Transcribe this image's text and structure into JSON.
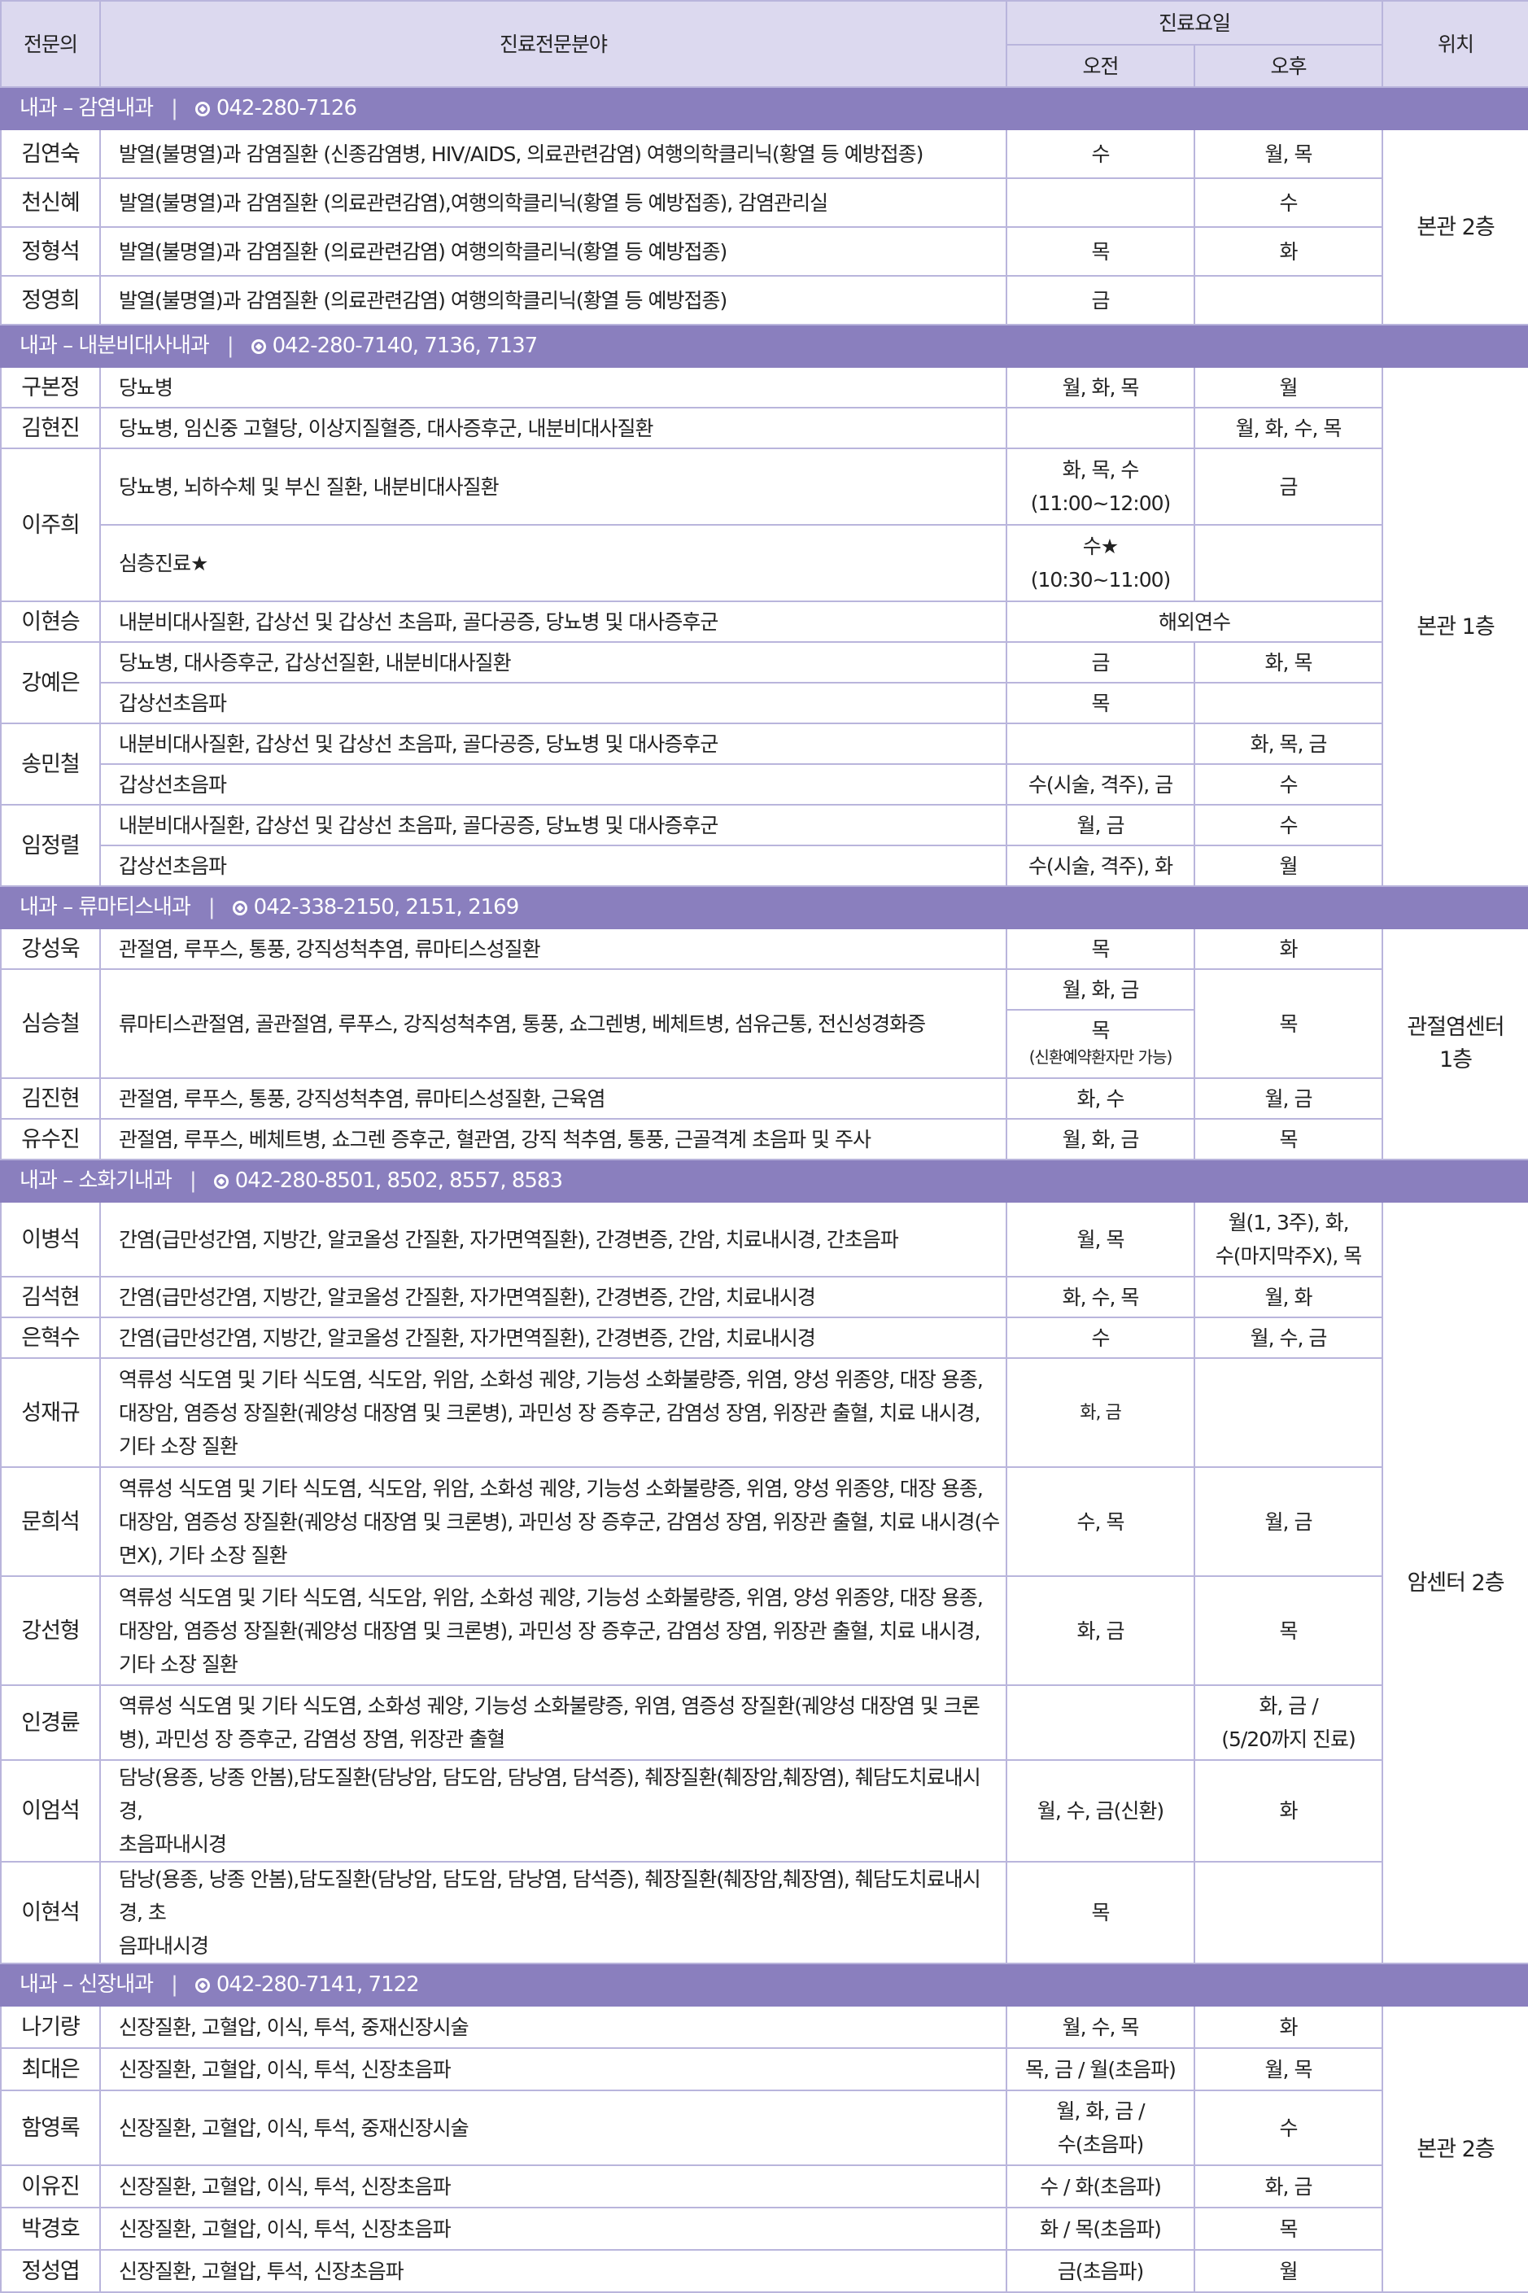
{
  "header": {
    "doctor": "전문의",
    "specialty": "진료전문분야",
    "days": "진료요일",
    "am": "오전",
    "pm": "오후",
    "location": "위치"
  },
  "sections": [
    {
      "name": "내과 – 감염내과",
      "phone": "042-280-7126",
      "location": "본관 2층"
    },
    {
      "name": "내과 – 내분비대사내과",
      "phone": "042-280-7140, 7136, 7137",
      "location": "본관 1층"
    },
    {
      "name": "내과 – 류마티스내과",
      "phone": "042-338-2150, 2151, 2169",
      "location": "관절염센터 1층"
    },
    {
      "name": "내과 – 소화기내과",
      "phone": "042-280-8501, 8502, 8557, 8583",
      "location": "암센터 2층"
    },
    {
      "name": "내과 – 신장내과",
      "phone": "042-280-7141, 7122",
      "location": "본관 2층"
    }
  ],
  "rows": [
    {
      "doctor": "김연숙",
      "specialty": "발열(불명열)과 감염질환 (신종감염병, HIV/AIDS, 의료관련감염) 여행의학클리닉(황열 등 예방접종)",
      "am": "수",
      "pm": "월, 목"
    },
    {
      "doctor": "천신혜",
      "specialty": "발열(불명열)과 감염질환 (의료관련감염),여행의학클리닉(황열 등 예방접종), 감염관리실",
      "am": "",
      "pm": "수"
    },
    {
      "doctor": "정형석",
      "specialty": "발열(불명열)과 감염질환 (의료관련감염) 여행의학클리닉(황열 등 예방접종)",
      "am": "목",
      "pm": "화"
    },
    {
      "doctor": "정영희",
      "specialty": "발열(불명열)과 감염질환 (의료관련감염) 여행의학클리닉(황열 등 예방접종)",
      "am": "금",
      "pm": ""
    },
    {
      "doctor": "구본정",
      "specialty": "당뇨병",
      "am": "월, 화, 목",
      "pm": "월"
    },
    {
      "doctor": "김현진",
      "specialty": "당뇨병, 임신중 고혈당, 이상지질혈증, 대사증후군, 내분비대사질환",
      "am": "",
      "pm": "월, 화, 수, 목"
    },
    {
      "doctor": "이주희",
      "specialty": "당뇨병, 뇌하수체 및 부신 질환, 내분비대사질환",
      "am": "화, 목, 수",
      "am2": "(11:00~12:00)",
      "pm": "금"
    },
    {
      "specialty": "심층진료★",
      "am": "수★",
      "am2": "(10:30~11:00)",
      "pm": ""
    },
    {
      "doctor": "이현승",
      "specialty": "내분비대사질환, 갑상선 및 갑상선 초음파, 골다공증, 당뇨병 및 대사증후군",
      "merged": "해외연수"
    },
    {
      "doctor": "강예은",
      "specialty": "당뇨병, 대사증후군, 갑상선질환, 내분비대사질환",
      "am": "금",
      "pm": "화, 목"
    },
    {
      "specialty": "갑상선초음파",
      "am": "목",
      "pm": ""
    },
    {
      "doctor": "송민철",
      "specialty": "내분비대사질환, 갑상선 및 갑상선 초음파, 골다공증, 당뇨병 및 대사증후군",
      "am": "",
      "pm": "화, 목, 금"
    },
    {
      "specialty": "갑상선초음파",
      "am": "수(시술, 격주), 금",
      "pm": "수"
    },
    {
      "doctor": "임정렬",
      "specialty": "내분비대사질환, 갑상선 및 갑상선 초음파, 골다공증, 당뇨병 및 대사증후군",
      "am": "월, 금",
      "pm": "수"
    },
    {
      "specialty": "갑상선초음파",
      "am": "수(시술, 격주), 화",
      "pm": "월"
    },
    {
      "doctor": "강성욱",
      "specialty": "관절염, 루푸스, 통풍, 강직성척추염, 류마티스성질환",
      "am": "목",
      "pm": "화"
    },
    {
      "doctor": "심승철",
      "specialty": "류마티스관절염, 골관절염, 루푸스, 강직성척추염, 통풍, 쇼그렌병, 베체트병, 섬유근통, 전신성경화증",
      "am": "월, 화, 금",
      "pm": "목"
    },
    {
      "am": "목",
      "am_note": "(신환예약환자만 가능)"
    },
    {
      "doctor": "김진현",
      "specialty": "관절염, 루푸스, 통풍, 강직성척추염, 류마티스성질환, 근육염",
      "am": "화, 수",
      "pm": "월, 금"
    },
    {
      "doctor": "유수진",
      "specialty": "관절염, 루푸스, 베체트병, 쇼그렌 증후군, 혈관염, 강직 척추염, 통풍, 근골격계 초음파 및 주사",
      "am": "월, 화, 금",
      "pm": "목"
    },
    {
      "doctor": "이병석",
      "specialty": "간염(급만성간염, 지방간, 알코올성 간질환, 자가면역질환), 간경변증, 간암, 치료내시경, 간초음파",
      "am": "월, 목",
      "pm": "월(1, 3주), 화,",
      "pm2": "수(마지막주X), 목"
    },
    {
      "doctor": "김석현",
      "specialty": "간염(급만성간염, 지방간, 알코올성 간질환, 자가면역질환), 간경변증, 간암, 치료내시경",
      "am": "화, 수, 목",
      "pm": "월, 화"
    },
    {
      "doctor": "은혁수",
      "specialty": "간염(급만성간염, 지방간, 알코올성 간질환, 자가면역질환), 간경변증, 간암, 치료내시경",
      "am": "수",
      "pm": "월, 수, 금"
    },
    {
      "doctor": "성재규",
      "specialty": [
        "역류성 식도염 및 기타 식도염, 식도암, 위암, 소화성 궤양, 기능성 소화불량증, 위염, 양성 위종양, 대장 용종,",
        "대장암, 염증성 장질환(궤양성 대장염 및 크론병), 과민성 장 증후군, 감염성 장염, 위장관 출혈, 치료 내시경,",
        "기타 소장 질환"
      ],
      "am": "화, 금",
      "pm": ""
    },
    {
      "doctor": "문희석",
      "specialty": [
        "역류성 식도염 및 기타 식도염, 식도암, 위암, 소화성 궤양, 기능성 소화불량증, 위염, 양성 위종양, 대장 용종,",
        "대장암, 염증성 장질환(궤양성 대장염 및 크론병), 과민성 장 증후군, 감염성 장염, 위장관 출혈, 치료 내시경(수",
        "면X), 기타 소장 질환"
      ],
      "am": "수, 목",
      "pm": "월, 금"
    },
    {
      "doctor": "강선형",
      "specialty": [
        "역류성 식도염 및 기타 식도염, 식도암, 위암, 소화성 궤양, 기능성 소화불량증, 위염, 양성 위종양, 대장 용종,",
        "대장암, 염증성 장질환(궤양성 대장염 및 크론병), 과민성 장 증후군, 감염성 장염, 위장관 출혈, 치료 내시경,",
        "기타 소장 질환"
      ],
      "am": "화, 금",
      "pm": "목"
    },
    {
      "doctor": "인경륜",
      "specialty": [
        "역류성 식도염 및 기타 식도염, 소화성 궤양, 기능성 소화불량증, 위염, 염증성 장질환(궤양성 대장염 및 크론",
        "병), 과민성 장 증후군, 감염성 장염, 위장관 출혈"
      ],
      "am": "",
      "pm": "화, 금 /",
      "pm2": "(5/20까지 진료)"
    },
    {
      "doctor": "이엄석",
      "specialty": [
        "담낭(용종, 낭종 안봄),담도질환(담낭암, 담도암, 담낭염, 담석증), 췌장질환(췌장암,췌장염), 췌담도치료내시경,",
        "초음파내시경"
      ],
      "am": "월, 수, 금(신환)",
      "pm": "화"
    },
    {
      "doctor": "이현석",
      "specialty": [
        "담낭(용종, 낭종 안봄),담도질환(담낭암, 담도암, 담낭염, 담석증), 췌장질환(췌장암,췌장염), 췌담도치료내시경, 초",
        "음파내시경"
      ],
      "am": "목",
      "pm": ""
    },
    {
      "doctor": "나기량",
      "specialty": "신장질환, 고혈압, 이식, 투석, 중재신장시술",
      "am": "월, 수, 목",
      "pm": "화"
    },
    {
      "doctor": "최대은",
      "specialty": "신장질환, 고혈압, 이식, 투석, 신장초음파",
      "am": "목, 금 / 월(초음파)",
      "pm": "월, 목"
    },
    {
      "doctor": "함영록",
      "specialty": "신장질환, 고혈압, 이식, 투석, 중재신장시술",
      "am": "월, 화, 금 /",
      "am2": "수(초음파)",
      "pm": "수"
    },
    {
      "doctor": "이유진",
      "specialty": "신장질환, 고혈압, 이식, 투석, 신장초음파",
      "am": "수 / 화(초음파)",
      "pm": "화, 금"
    },
    {
      "doctor": "박경호",
      "specialty": "신장질환, 고혈압, 이식, 투석, 신장초음파",
      "am": "화 / 목(초음파)",
      "pm": "목"
    },
    {
      "doctor": "정성엽",
      "specialty": "신장질환, 고혈압, 투석, 신장초음파",
      "am": "금(초음파)",
      "pm": "월"
    }
  ]
}
